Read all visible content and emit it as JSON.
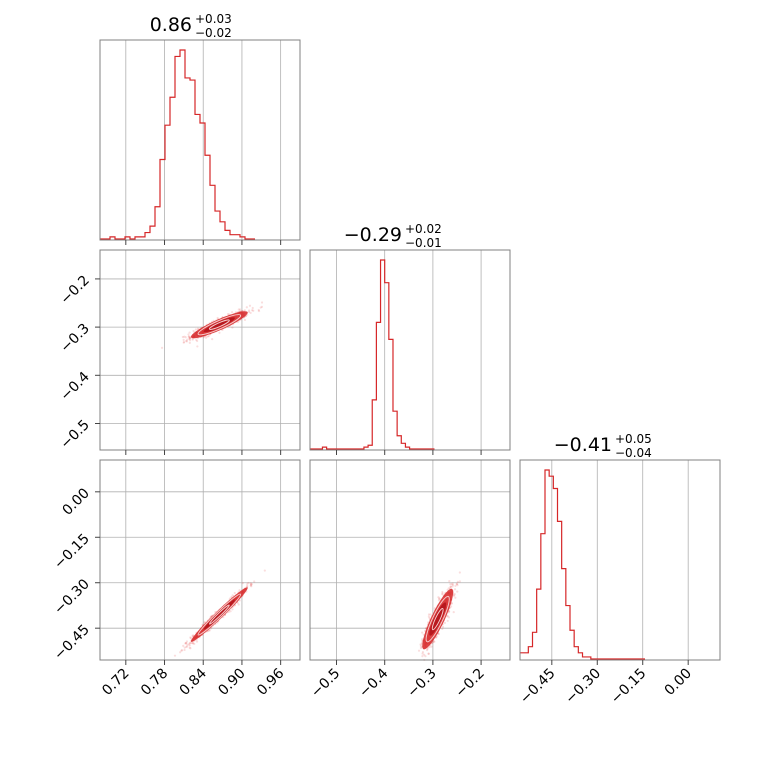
{
  "chart_data": {
    "type": "corner",
    "colors": {
      "accent": "#d62728",
      "grid": "#b0b0b0",
      "frame": "#808080"
    },
    "parameters": [
      {
        "median": "0.86",
        "plus": "+0.03",
        "minus": "−0.02",
        "range": [
          0.68,
          0.99
        ],
        "ticks": [
          0.72,
          0.78,
          0.84,
          0.9,
          0.96
        ],
        "tick_labels": [
          "0.72",
          "0.78",
          "0.84",
          "0.90",
          "0.96"
        ]
      },
      {
        "median": "−0.29",
        "plus": "+0.02",
        "minus": "−0.01",
        "range": [
          -0.555,
          -0.14
        ],
        "ticks": [
          -0.5,
          -0.4,
          -0.3,
          -0.2
        ],
        "tick_labels": [
          "−0.5",
          "−0.4",
          "−0.3",
          "−0.2"
        ]
      },
      {
        "median": "−0.41",
        "plus": "+0.05",
        "minus": "−0.04",
        "range": [
          -0.555,
          0.105
        ],
        "ticks": [
          -0.45,
          -0.3,
          -0.15,
          0.0
        ],
        "tick_labels": [
          "−0.45",
          "−0.30",
          "−0.15",
          "0.00"
        ]
      }
    ],
    "histograms": [
      {
        "bin_start": 0.68,
        "bin_width": 0.00775,
        "counts": [
          0,
          0,
          0.01,
          0,
          0,
          0.01,
          0,
          0.01,
          0.01,
          0.03,
          0.06,
          0.15,
          0.37,
          0.53,
          0.66,
          0.85,
          0.88,
          0.75,
          0.74,
          0.58,
          0.54,
          0.39,
          0.25,
          0.13,
          0.08,
          0.04,
          0.02,
          0.02,
          0.01,
          0,
          0
        ]
      },
      {
        "bin_start": -0.555,
        "bin_width": 0.00861,
        "counts": [
          0,
          0,
          0,
          0.01,
          0,
          0,
          0,
          0,
          0,
          0,
          0,
          0,
          0,
          0.01,
          0.02,
          0.26,
          0.67,
          1.0,
          0.88,
          0.58,
          0.2,
          0.07,
          0.03,
          0.01,
          0,
          0,
          0,
          0,
          0,
          0
        ]
      },
      {
        "bin_start": -0.555,
        "bin_width": 0.01375,
        "counts": [
          0.03,
          0.03,
          0.06,
          0.13,
          0.34,
          0.61,
          0.92,
          0.89,
          0.83,
          0.67,
          0.44,
          0.26,
          0.14,
          0.06,
          0.03,
          0.01,
          0.01,
          0,
          0,
          0,
          0,
          0,
          0,
          0,
          0,
          0,
          0,
          0,
          0,
          0
        ]
      }
    ],
    "pairs": [
      {
        "x_param": 0,
        "y_param": 1,
        "center": [
          0.865,
          -0.295
        ],
        "sigma": [
          0.022,
          0.014
        ],
        "corr": 0.9
      },
      {
        "x_param": 0,
        "y_param": 2,
        "center": [
          0.865,
          -0.405
        ],
        "sigma": [
          0.022,
          0.045
        ],
        "corr": 0.98
      },
      {
        "x_param": 1,
        "y_param": 2,
        "center": [
          -0.29,
          -0.42
        ],
        "sigma": [
          0.016,
          0.05
        ],
        "corr": 0.88
      }
    ]
  }
}
